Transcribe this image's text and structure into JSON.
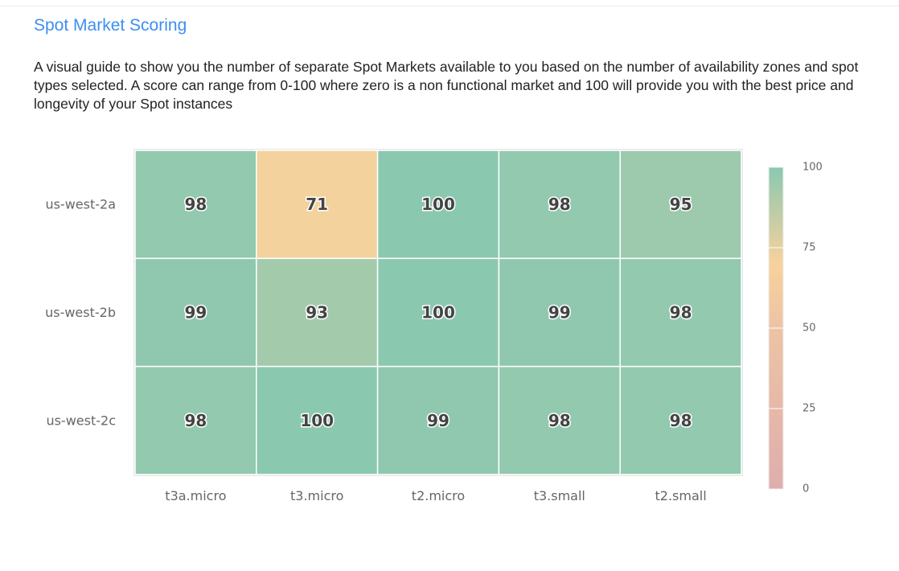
{
  "header": {
    "title": "Spot Market Scoring",
    "description": "A visual guide to show you the number of separate Spot Markets available to you based on the number of availability zones and spot types selected. A score can range from 0-100 where zero is a non functional market and 100 will provide you with the best price and longevity of your Spot instances"
  },
  "chart_data": {
    "type": "heatmap",
    "x_categories": [
      "t3a.micro",
      "t3.micro",
      "t2.micro",
      "t3.small",
      "t2.small"
    ],
    "y_categories": [
      "us-west-2a",
      "us-west-2b",
      "us-west-2c"
    ],
    "values": [
      [
        98,
        71,
        100,
        98,
        95
      ],
      [
        99,
        93,
        100,
        99,
        98
      ],
      [
        98,
        100,
        99,
        98,
        98
      ]
    ],
    "colorbar": {
      "range": [
        0,
        100
      ],
      "ticks": [
        "0",
        "25",
        "50",
        "75",
        "100"
      ],
      "colors": {
        "0": "#dfaeac",
        "50": "#edc3a5",
        "70": "#f7d29d",
        "100": "#8bc8b0"
      }
    },
    "legend": "right"
  }
}
